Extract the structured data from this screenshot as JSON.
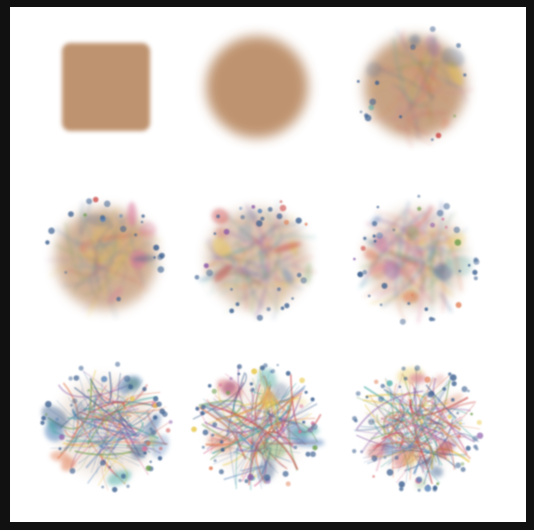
{
  "figure": {
    "background": "#ffffff",
    "frame_color": "#111111",
    "grid": {
      "rows": 3,
      "cols": 3
    },
    "palette": [
      "#c9433f",
      "#4f7fb8",
      "#e8c84a",
      "#3fa7a0",
      "#8a5aa8",
      "#e07a4f",
      "#6f9f4f",
      "#d9739a",
      "#3b5f8f"
    ],
    "base_color": "#b98a64",
    "panels": [
      {
        "shape": "square",
        "spread": 0.0,
        "sharpness": 0.0,
        "ring": 0.0,
        "seed": 11
      },
      {
        "shape": "disk",
        "spread": 0.0,
        "sharpness": 0.0,
        "ring": 0.0,
        "seed": 12
      },
      {
        "shape": "disk",
        "spread": 0.15,
        "sharpness": 0.12,
        "ring": 0.1,
        "seed": 13
      },
      {
        "shape": "disk",
        "spread": 0.3,
        "sharpness": 0.25,
        "ring": 0.25,
        "seed": 14
      },
      {
        "shape": "disk",
        "spread": 0.55,
        "sharpness": 0.45,
        "ring": 0.45,
        "seed": 15
      },
      {
        "shape": "disk",
        "spread": 0.7,
        "sharpness": 0.6,
        "ring": 0.6,
        "seed": 16
      },
      {
        "shape": "disk",
        "spread": 0.85,
        "sharpness": 0.8,
        "ring": 0.8,
        "seed": 17
      },
      {
        "shape": "disk",
        "spread": 0.95,
        "sharpness": 0.9,
        "ring": 0.9,
        "seed": 18
      },
      {
        "shape": "disk",
        "spread": 1.0,
        "sharpness": 1.0,
        "ring": 1.0,
        "seed": 19
      }
    ]
  }
}
